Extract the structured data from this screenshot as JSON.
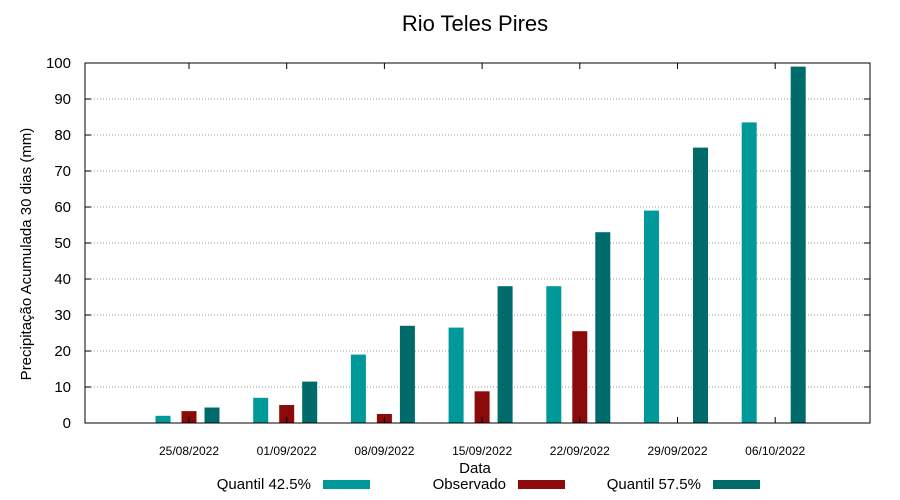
{
  "chart_data": {
    "type": "bar",
    "title": "Rio Teles Pires",
    "xlabel": "Data",
    "ylabel": "Precipitação Acumulada 30 dias (mm)",
    "ylim": [
      0,
      100
    ],
    "yticks": [
      0,
      10,
      20,
      30,
      40,
      50,
      60,
      70,
      80,
      90,
      100
    ],
    "grid": true,
    "legend_position": "bottom",
    "categories": [
      "25/08/2022",
      "01/09/2022",
      "08/09/2022",
      "15/09/2022",
      "22/09/2022",
      "29/09/2022",
      "06/10/2022"
    ],
    "series": [
      {
        "name": "Quantil 42.5%",
        "color": "#009999",
        "values": [
          2.0,
          7.0,
          19.0,
          26.5,
          38.0,
          59.0,
          83.5
        ]
      },
      {
        "name": "Observado",
        "color": "#8b0a0a",
        "values": [
          3.3,
          5.0,
          2.5,
          8.8,
          25.5,
          null,
          null
        ]
      },
      {
        "name": "Quantil 57.5%",
        "color": "#006b6b",
        "values": [
          4.3,
          11.5,
          27.0,
          38.0,
          53.0,
          76.5,
          99.0
        ]
      }
    ]
  }
}
